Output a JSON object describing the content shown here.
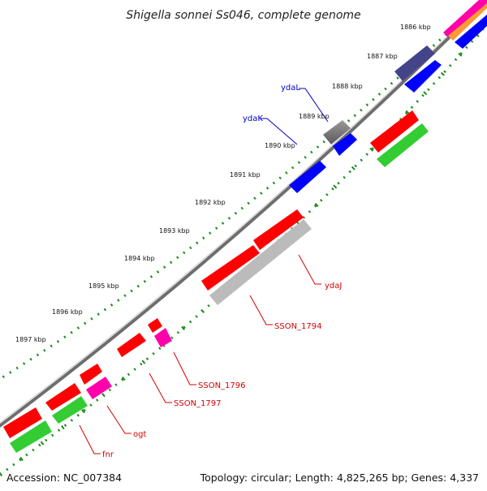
{
  "title": "Shigella sonnei Ss046, complete genome",
  "ticks": [
    "1886 kbp",
    "1887 kbp",
    "1888 kbp",
    "1889 kbp",
    "1890 kbp",
    "1891 kbp",
    "1892 kbp",
    "1893 kbp",
    "1894 kbp",
    "1895 kbp",
    "1896 kbp",
    "1897 kbp"
  ],
  "gene_labels": {
    "ydaL": "ydaL",
    "ydaK": "ydaK",
    "ydaJ": "ydaJ",
    "SSON_1794": "SSON_1794",
    "SSON_1796": "SSON_1796",
    "SSON_1797": "SSON_1797",
    "ogt": "ogt",
    "fnr": "fnr"
  },
  "footer": {
    "accession": "Accession: NC_007384",
    "stats": "Topology: circular; Length: 4,825,265 bp; Genes: 4,337"
  },
  "colors": {
    "red": "#ff0000",
    "blue": "#0000ff",
    "green": "#33cc33",
    "gray": "#555555",
    "lightgray": "#bbbbbb",
    "magenta": "#ff00aa",
    "purple": "#44448a",
    "orange": "#ff9933",
    "backbone": "#7a7a7a",
    "tick": "#1a8a1a",
    "label_red": "#d40000",
    "label_blue": "#0000c8"
  }
}
